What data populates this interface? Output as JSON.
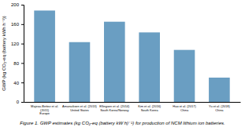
{
  "chart_data": {
    "type": "bar",
    "categories": [
      "Majeau-Bettez et al.\n(2011)\nEurope",
      "Amanuiksen et al. (2013)\nUnited States",
      "Ellingsen et al. (2014)\nSouth Korea/Norway",
      "Kim et al. (2016)\nSouth Korea",
      "Hao et al. (2017)\nChina",
      "Yu et al. (2018)\nChina"
    ],
    "values": [
      188,
      123,
      165,
      143,
      107,
      50
    ],
    "color": "#6a9ec2",
    "ylim": [
      0,
      200
    ],
    "yticks": [
      0,
      40,
      80,
      120,
      160,
      200
    ],
    "ylabel": "GWP (kg CO₂-eq (battery kWh h⁻¹))",
    "caption": "Figure 1. GWP estimates (kg CO₂-eq (battery kW h)⁻¹) for production of NCM lithium ion batteries."
  }
}
